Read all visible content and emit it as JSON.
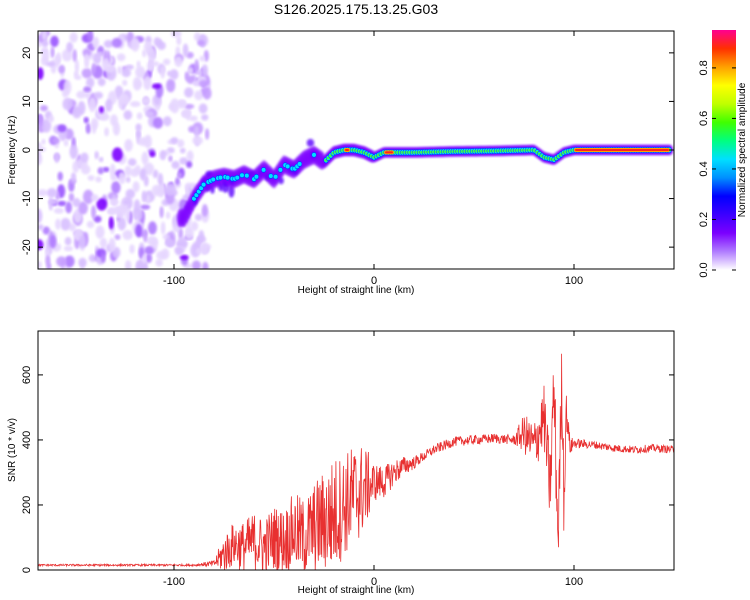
{
  "title": "S126.2025.175.13.25.G03",
  "colors": {
    "snr_line": "#e83030",
    "colormap": [
      "#ffffff",
      "#b07cff",
      "#7b00ff",
      "#3c00ff",
      "#0000ff",
      "#0090ff",
      "#00e0ff",
      "#00ff80",
      "#40ff00",
      "#c0ff00",
      "#ffff00",
      "#ffa000",
      "#ff3000",
      "#ff0090"
    ]
  },
  "chart_data": [
    {
      "type": "heatmap",
      "title": "S126.2025.175.13.25.G03",
      "xlabel": "Height of straight line (km)",
      "ylabel": "Frequency (Hz)",
      "xlim": [
        -168,
        150
      ],
      "ylim": [
        -24.5,
        24.5
      ],
      "xticks": [
        -100,
        0,
        100
      ],
      "yticks": [
        -20,
        -10,
        0,
        10,
        20
      ],
      "colorbar": {
        "label": "Normalized spectral amplitude",
        "range": [
          0,
          0.95
        ],
        "ticks": [
          0.0,
          0.2,
          0.4,
          0.6,
          0.8
        ]
      },
      "ridge": {
        "x": [
          -95,
          -90,
          -85,
          -80,
          -75,
          -70,
          -65,
          -60,
          -55,
          -50,
          -45,
          -40,
          -35,
          -30,
          -25,
          -20,
          -15,
          -10,
          -5,
          0,
          5,
          10,
          20,
          40,
          60,
          80,
          85,
          90,
          95,
          100,
          120,
          150
        ],
        "y": [
          -14,
          -10,
          -7,
          -6,
          -5.5,
          -6,
          -5,
          -6,
          -4,
          -6,
          -3,
          -4,
          -2,
          -1,
          -2.5,
          -0.5,
          0,
          0,
          -0.5,
          -1.5,
          -0.5,
          -0.5,
          -0.5,
          -0.3,
          -0.2,
          0,
          -1.5,
          -2.0,
          -0.5,
          0,
          0,
          0
        ]
      },
      "noise_region_x": [
        -168,
        -83
      ]
    },
    {
      "type": "line",
      "xlabel": "Height of straight line (km)",
      "ylabel": "SNR (10 * v/v)",
      "xlim": [
        -168,
        150
      ],
      "ylim": [
        0,
        735
      ],
      "xticks": [
        -100,
        0,
        100
      ],
      "yticks": [
        0,
        200,
        400,
        600
      ],
      "series": [
        {
          "x": [
            -168,
            -150,
            -130,
            -110,
            -90,
            -80,
            -75,
            -70,
            -65,
            -60,
            -55,
            -50,
            -45,
            -40,
            -35,
            -30,
            -25,
            -20,
            -15,
            -10,
            -5,
            0,
            5,
            10,
            15,
            20,
            25,
            30,
            40,
            50,
            60,
            70,
            75,
            80,
            85,
            88,
            90,
            92,
            94,
            95,
            96,
            98,
            100,
            110,
            120,
            130,
            140,
            150
          ],
          "y": [
            15,
            15,
            15,
            15,
            15,
            20,
            50,
            80,
            70,
            90,
            70,
            100,
            90,
            120,
            100,
            130,
            150,
            170,
            200,
            230,
            250,
            270,
            270,
            300,
            320,
            330,
            350,
            370,
            395,
            400,
            405,
            400,
            420,
            380,
            470,
            250,
            560,
            100,
            600,
            200,
            500,
            380,
            390,
            385,
            375,
            370,
            375,
            370
          ],
          "noise_amplitude": [
            3,
            3,
            3,
            3,
            3,
            10,
            60,
            70,
            80,
            90,
            90,
            100,
            100,
            120,
            120,
            140,
            160,
            180,
            160,
            160,
            140,
            60,
            50,
            40,
            30,
            20,
            15,
            15,
            15,
            15,
            15,
            15,
            60,
            80,
            100,
            120,
            160,
            120,
            140,
            120,
            60,
            30,
            15,
            12,
            12,
            12,
            12,
            12
          ]
        }
      ]
    }
  ]
}
